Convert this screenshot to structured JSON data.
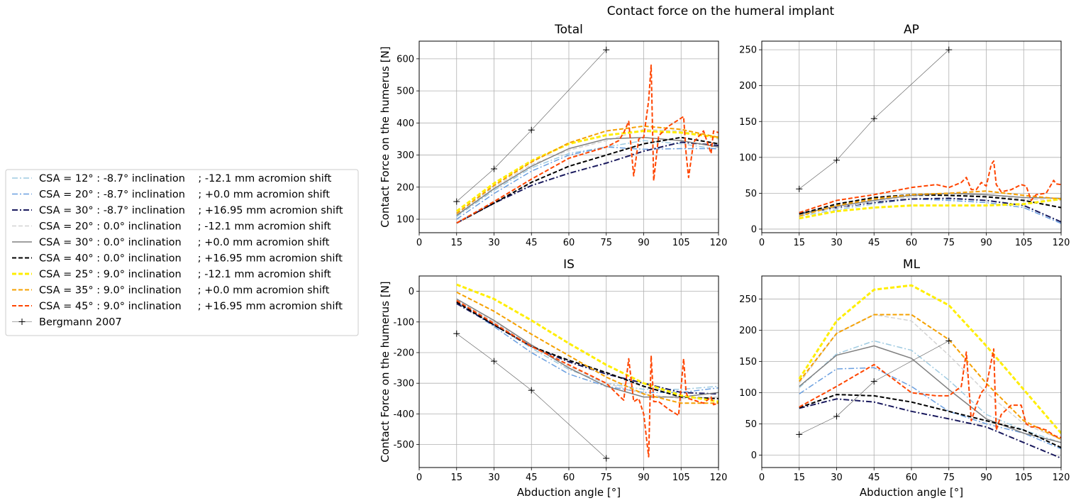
{
  "figure": {
    "title": "Contact force on the humeral implant"
  },
  "legend": {
    "entries": [
      {
        "label": "CSA = 12° : -8.7° inclination    ; -12.1 mm acromion shift",
        "color": "#9ecae1",
        "dash": "dashdot",
        "width": 1.5,
        "marker": ""
      },
      {
        "label": "CSA = 20° : -8.7° inclination    ; +0.0 mm acromion shift",
        "color": "#6a9fe0",
        "dash": "dashdot",
        "width": 1.5,
        "marker": ""
      },
      {
        "label": "CSA = 30° : -8.7° inclination    ; +16.95 mm acromion shift",
        "color": "#1a1a5e",
        "dash": "dashdot",
        "width": 2,
        "marker": ""
      },
      {
        "label": "CSA = 20° : 0.0° inclination     ; -12.1 mm acromion shift",
        "color": "#d3d3d3",
        "dash": "dashed",
        "width": 1.5,
        "marker": ""
      },
      {
        "label": "CSA = 30° : 0.0° inclination     ; +0.0 mm acromion shift",
        "color": "#808080",
        "dash": "solid",
        "width": 1.5,
        "marker": ""
      },
      {
        "label": "CSA = 40° : 0.0° inclination     ; +16.95 mm acromion shift",
        "color": "#000000",
        "dash": "dashed",
        "width": 2,
        "marker": ""
      },
      {
        "label": "CSA = 25° : 9.0° inclination     ; -12.1 mm acromion shift",
        "color": "#ffee00",
        "dash": "dashed",
        "width": 3,
        "marker": ""
      },
      {
        "label": "CSA = 35° : 9.0° inclination     ; +0.0 mm acromion shift",
        "color": "#f5a000",
        "dash": "dashed",
        "width": 2,
        "marker": ""
      },
      {
        "label": "CSA = 45° : 9.0° inclination     ; +16.95 mm acromion shift",
        "color": "#ff4500",
        "dash": "dashed",
        "width": 2,
        "marker": ""
      },
      {
        "label": "Bergmann 2007",
        "color": "#555555",
        "dash": "solid",
        "width": 0.6,
        "marker": "+"
      }
    ]
  },
  "chart_data": [
    {
      "type": "line",
      "title": "Total",
      "xlabel": "",
      "ylabel": "Contact Force on the humerus [N]",
      "xlim": [
        0,
        120
      ],
      "ylim": [
        58,
        655
      ],
      "xticks": [
        0,
        15,
        30,
        45,
        60,
        75,
        90,
        105,
        120
      ],
      "yticks": [
        100,
        200,
        300,
        400,
        500,
        600
      ],
      "grid": true,
      "series": [
        {
          "x": [
            15,
            30,
            45,
            60,
            75,
            90,
            105,
            120
          ],
          "y": [
            108,
            190,
            260,
            305,
            325,
            345,
            335,
            318
          ]
        },
        {
          "x": [
            15,
            30,
            45,
            60,
            75,
            90,
            105,
            120
          ],
          "y": [
            100,
            180,
            250,
            300,
            325,
            318,
            320,
            320
          ]
        },
        {
          "x": [
            15,
            30,
            45,
            60,
            75,
            90,
            105,
            120
          ],
          "y": [
            88,
            150,
            205,
            243,
            275,
            312,
            340,
            330
          ]
        },
        {
          "x": [
            15,
            30,
            45,
            60,
            75,
            90,
            105,
            120
          ],
          "y": [
            115,
            200,
            270,
            315,
            345,
            380,
            375,
            350
          ]
        },
        {
          "x": [
            15,
            30,
            45,
            60,
            75,
            90,
            105,
            120
          ],
          "y": [
            112,
            195,
            265,
            320,
            350,
            355,
            345,
            325
          ]
        },
        {
          "x": [
            15,
            30,
            45,
            60,
            75,
            90,
            105,
            120
          ],
          "y": [
            88,
            150,
            215,
            265,
            300,
            335,
            355,
            335
          ]
        },
        {
          "x": [
            15,
            30,
            45,
            60,
            75,
            90,
            105,
            120
          ],
          "y": [
            125,
            212,
            282,
            335,
            362,
            375,
            370,
            355
          ]
        },
        {
          "x": [
            15,
            30,
            45,
            60,
            75,
            90,
            105,
            120
          ],
          "y": [
            118,
            205,
            278,
            338,
            375,
            390,
            380,
            355
          ]
        },
        {
          "x": [
            15,
            30,
            45,
            60,
            75,
            80,
            82,
            84,
            86,
            88,
            90,
            92,
            93,
            94,
            96,
            100,
            104,
            106,
            107,
            108,
            110,
            114,
            117,
            118,
            120
          ],
          "y": [
            88,
            155,
            225,
            290,
            325,
            345,
            370,
            405,
            235,
            350,
            355,
            470,
            580,
            220,
            360,
            390,
            410,
            420,
            305,
            230,
            340,
            375,
            305,
            375,
            370
          ]
        },
        {
          "x": [
            15,
            30,
            45,
            75
          ],
          "y": [
            155,
            257,
            378,
            628
          ]
        }
      ]
    },
    {
      "type": "line",
      "title": "AP",
      "xlabel": "",
      "ylabel": "",
      "xlim": [
        0,
        120
      ],
      "ylim": [
        -5,
        262
      ],
      "xticks": [
        0,
        15,
        30,
        45,
        60,
        75,
        90,
        105,
        120
      ],
      "yticks": [
        0,
        50,
        100,
        150,
        200,
        250
      ],
      "grid": true,
      "series": [
        {
          "x": [
            15,
            30,
            45,
            60,
            75,
            90,
            105,
            120
          ],
          "y": [
            18,
            27,
            35,
            42,
            42,
            40,
            33,
            10
          ]
        },
        {
          "x": [
            15,
            30,
            45,
            60,
            75,
            90,
            105,
            120
          ],
          "y": [
            20,
            30,
            38,
            42,
            40,
            37,
            30,
            8
          ]
        },
        {
          "x": [
            15,
            30,
            45,
            60,
            75,
            90,
            105,
            120
          ],
          "y": [
            22,
            30,
            37,
            42,
            43,
            40,
            33,
            10
          ]
        },
        {
          "x": [
            15,
            30,
            45,
            60,
            75,
            90,
            105,
            120
          ],
          "y": [
            20,
            30,
            38,
            45,
            48,
            47,
            42,
            40
          ]
        },
        {
          "x": [
            15,
            30,
            45,
            60,
            75,
            90,
            105,
            120
          ],
          "y": [
            21,
            32,
            40,
            47,
            50,
            48,
            44,
            43
          ]
        },
        {
          "x": [
            15,
            30,
            45,
            60,
            75,
            90,
            105,
            120
          ],
          "y": [
            21,
            35,
            44,
            48,
            47,
            45,
            40,
            30
          ]
        },
        {
          "x": [
            15,
            30,
            45,
            60,
            75,
            90,
            105,
            120
          ],
          "y": [
            15,
            25,
            30,
            33,
            33,
            33,
            35,
            42
          ]
        },
        {
          "x": [
            15,
            30,
            45,
            60,
            75,
            90,
            105,
            120
          ],
          "y": [
            18,
            33,
            42,
            48,
            50,
            53,
            47,
            42
          ]
        },
        {
          "x": [
            15,
            30,
            45,
            60,
            70,
            75,
            80,
            82,
            84,
            86,
            88,
            90,
            92,
            93,
            94,
            96,
            100,
            104,
            106,
            108,
            110,
            114,
            117,
            118,
            120
          ],
          "y": [
            23,
            40,
            48,
            58,
            62,
            58,
            65,
            72,
            55,
            55,
            65,
            60,
            90,
            95,
            62,
            52,
            55,
            62,
            60,
            40,
            48,
            50,
            68,
            63,
            62
          ]
        },
        {
          "x": [
            15,
            30,
            45,
            75
          ],
          "y": [
            56,
            96,
            154,
            250
          ]
        }
      ]
    },
    {
      "type": "line",
      "title": "IS",
      "xlabel": "Abduction angle [°]",
      "ylabel": "Contact Force on the humerus [N]",
      "xlim": [
        0,
        120
      ],
      "ylim": [
        -575,
        50
      ],
      "xticks": [
        0,
        15,
        30,
        45,
        60,
        75,
        90,
        105,
        120
      ],
      "yticks": [
        0,
        -100,
        -200,
        -300,
        -400,
        -500
      ],
      "grid": true,
      "series": [
        {
          "x": [
            15,
            30,
            45,
            60,
            75,
            90,
            105,
            120
          ],
          "y": [
            -35,
            -110,
            -185,
            -255,
            -300,
            -320,
            -320,
            -310
          ]
        },
        {
          "x": [
            15,
            30,
            45,
            60,
            75,
            90,
            105,
            120
          ],
          "y": [
            -35,
            -115,
            -200,
            -270,
            -310,
            -330,
            -330,
            -315
          ]
        },
        {
          "x": [
            15,
            30,
            45,
            60,
            75,
            90,
            105,
            120
          ],
          "y": [
            -40,
            -110,
            -180,
            -230,
            -270,
            -300,
            -330,
            -335
          ]
        },
        {
          "x": [
            15,
            30,
            45,
            60,
            75,
            90,
            105,
            120
          ],
          "y": [
            -25,
            -100,
            -175,
            -245,
            -300,
            -335,
            -350,
            -345
          ]
        },
        {
          "x": [
            15,
            30,
            45,
            60,
            75,
            90,
            105,
            120
          ],
          "y": [
            -25,
            -95,
            -175,
            -250,
            -310,
            -345,
            -345,
            -330
          ]
        },
        {
          "x": [
            15,
            30,
            45,
            60,
            75,
            90,
            105,
            120
          ],
          "y": [
            -35,
            -110,
            -180,
            -225,
            -265,
            -310,
            -345,
            -350
          ]
        },
        {
          "x": [
            15,
            30,
            45,
            60,
            75,
            90,
            105,
            120
          ],
          "y": [
            22,
            -25,
            -95,
            -170,
            -240,
            -300,
            -340,
            -360
          ]
        },
        {
          "x": [
            15,
            30,
            45,
            60,
            75,
            90,
            105,
            120
          ],
          "y": [
            -3,
            -65,
            -140,
            -210,
            -280,
            -335,
            -365,
            -365
          ]
        },
        {
          "x": [
            15,
            30,
            45,
            60,
            75,
            80,
            82,
            84,
            86,
            88,
            90,
            92,
            93,
            94,
            96,
            100,
            104,
            106,
            107,
            108,
            110,
            114,
            117,
            118,
            120
          ],
          "y": [
            -30,
            -105,
            -180,
            -240,
            -300,
            -340,
            -355,
            -220,
            -360,
            -350,
            -400,
            -540,
            -210,
            -360,
            -360,
            -385,
            -405,
            -220,
            -330,
            -350,
            -355,
            -365,
            -345,
            -370,
            -365
          ]
        },
        {
          "x": [
            15,
            30,
            45,
            75
          ],
          "y": [
            -138,
            -228,
            -323,
            -545
          ]
        }
      ]
    },
    {
      "type": "line",
      "title": "ML",
      "xlabel": "Abduction angle [°]",
      "ylabel": "",
      "xlim": [
        0,
        120
      ],
      "ylim": [
        -20,
        287
      ],
      "xticks": [
        0,
        15,
        30,
        45,
        60,
        75,
        90,
        105,
        120
      ],
      "yticks": [
        0,
        50,
        100,
        150,
        200,
        250
      ],
      "grid": true,
      "series": [
        {
          "x": [
            15,
            30,
            45,
            60,
            75,
            90,
            105,
            120
          ],
          "y": [
            108,
            162,
            183,
            168,
            120,
            65,
            40,
            20
          ]
        },
        {
          "x": [
            15,
            30,
            45,
            60,
            75,
            90,
            105,
            120
          ],
          "y": [
            98,
            138,
            140,
            110,
            70,
            50,
            35,
            10
          ]
        },
        {
          "x": [
            15,
            30,
            45,
            60,
            75,
            90,
            105,
            120
          ],
          "y": [
            75,
            90,
            85,
            70,
            58,
            45,
            20,
            -5
          ]
        },
        {
          "x": [
            15,
            30,
            45,
            60,
            75,
            90,
            105,
            120
          ],
          "y": [
            115,
            195,
            225,
            215,
            160,
            100,
            50,
            25
          ]
        },
        {
          "x": [
            15,
            30,
            45,
            60,
            75,
            90,
            105,
            120
          ],
          "y": [
            110,
            160,
            175,
            155,
            105,
            58,
            35,
            20
          ]
        },
        {
          "x": [
            15,
            30,
            45,
            60,
            75,
            90,
            105,
            120
          ],
          "y": [
            76,
            97,
            95,
            85,
            70,
            55,
            40,
            12
          ]
        },
        {
          "x": [
            15,
            30,
            45,
            60,
            75,
            90,
            105,
            120
          ],
          "y": [
            122,
            215,
            265,
            272,
            240,
            175,
            105,
            35
          ]
        },
        {
          "x": [
            15,
            30,
            45,
            60,
            75,
            90,
            105,
            120
          ],
          "y": [
            118,
            195,
            225,
            225,
            185,
            115,
            55,
            25
          ]
        },
        {
          "x": [
            15,
            30,
            45,
            60,
            70,
            75,
            80,
            82,
            84,
            86,
            88,
            90,
            92,
            93,
            94,
            96,
            100,
            104,
            106,
            108,
            110,
            114,
            117,
            118,
            120
          ],
          "y": [
            77,
            110,
            145,
            100,
            95,
            95,
            110,
            165,
            55,
            80,
            100,
            110,
            150,
            170,
            40,
            65,
            80,
            80,
            50,
            45,
            45,
            40,
            32,
            30,
            28
          ]
        },
        {
          "x": [
            15,
            30,
            45,
            75
          ],
          "y": [
            33,
            62,
            118,
            183
          ]
        }
      ]
    }
  ]
}
